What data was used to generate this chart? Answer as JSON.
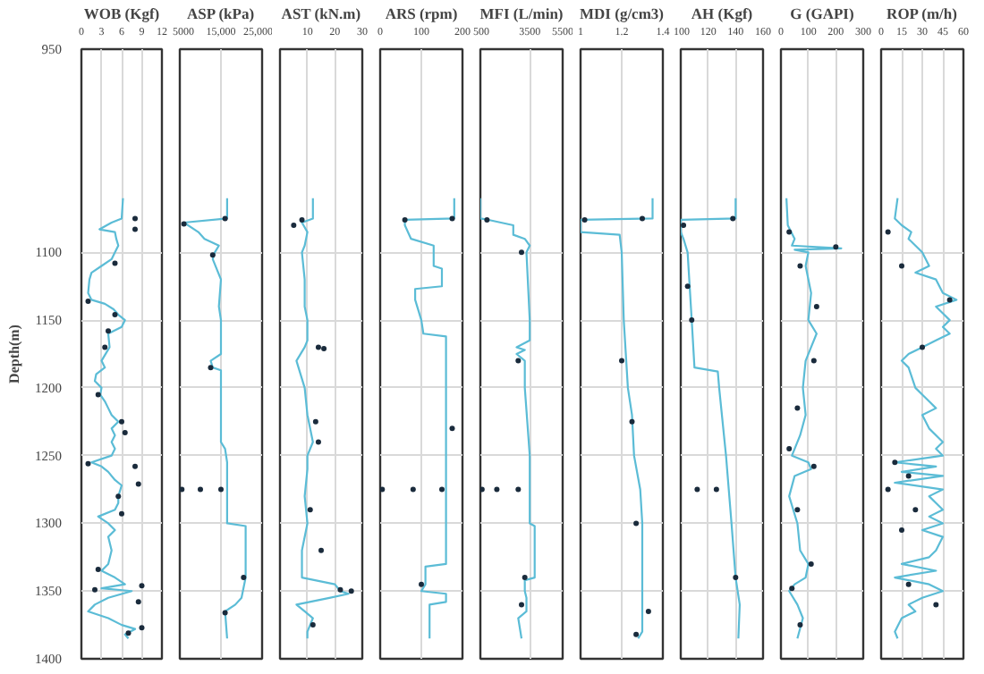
{
  "chart_data": [
    {
      "type": "line",
      "title": "WOB (Kgf)",
      "ylabel": "Depth(m)",
      "xlim": [
        0,
        12
      ],
      "xticks": [
        0,
        3,
        6,
        9,
        12
      ],
      "ylim": [
        1400,
        950
      ],
      "yticks": [
        950,
        1100,
        1150,
        1200,
        1250,
        1300,
        1350,
        1400
      ],
      "grid": true,
      "series": [
        {
          "color": "#5bbcd6",
          "x": [
            6.2,
            6,
            4.5,
            2.7,
            5,
            5.2,
            5.5,
            5,
            4.5,
            3,
            1.5,
            1.2,
            1,
            1.5,
            3.5,
            4.8,
            5.5,
            6.5,
            6,
            4,
            4.2,
            3,
            3.5,
            2.2,
            2,
            3,
            2.8,
            3.5,
            4,
            4.5,
            5.5,
            4.5,
            5,
            4.5,
            5,
            4.5,
            1.5,
            3,
            4,
            5,
            6,
            5.5,
            5.5,
            5,
            2.5,
            4,
            5,
            4,
            4.5,
            4,
            3,
            5,
            6.5,
            3,
            7.5,
            4,
            2,
            1,
            4,
            6,
            8,
            6.5,
            7
          ],
          "values": [
            1060,
            1075,
            1078,
            1083,
            1085,
            1090,
            1095,
            1100,
            1105,
            1110,
            1115,
            1120,
            1130,
            1135,
            1138,
            1142,
            1146,
            1150,
            1155,
            1160,
            1170,
            1180,
            1185,
            1190,
            1195,
            1200,
            1205,
            1210,
            1215,
            1220,
            1225,
            1230,
            1235,
            1240,
            1245,
            1250,
            1255,
            1258,
            1262,
            1268,
            1272,
            1280,
            1285,
            1290,
            1295,
            1300,
            1305,
            1310,
            1320,
            1330,
            1335,
            1340,
            1345,
            1348,
            1350,
            1355,
            1360,
            1365,
            1370,
            1375,
            1378,
            1382,
            1385
          ]
        },
        {
          "type": "scatter",
          "color": "#1a2b3c",
          "x": [
            8,
            8,
            5,
            1,
            5,
            4,
            3.5,
            2.5,
            6,
            6.5,
            1,
            8,
            8.5,
            5.5,
            6,
            2.5,
            9,
            2,
            8.5,
            9,
            7
          ],
          "values": [
            1075,
            1083,
            1108,
            1136,
            1146,
            1158,
            1170,
            1205,
            1225,
            1233,
            1256,
            1258,
            1271,
            1280,
            1293,
            1334,
            1346,
            1349,
            1358,
            1377,
            1381
          ]
        }
      ]
    },
    {
      "type": "line",
      "title": "ASP (kPa)",
      "xlim": [
        5000,
        25000
      ],
      "xticks": [
        5000,
        {
          "value": 15000,
          "label": "15,000"
        },
        {
          "value": 25000,
          "label": "25,000"
        }
      ],
      "ylim": [
        1400,
        950
      ],
      "yticks": [
        950,
        1100,
        1150,
        1200,
        1250,
        1300,
        1350,
        1400
      ],
      "grid": true,
      "tick_labels": "x",
      "series": [
        {
          "color": "#5bbcd6",
          "x": [
            16500,
            16500,
            6000,
            9500,
            11000,
            14500,
            13500,
            13000,
            15000,
            14500,
            15000,
            15000,
            12500,
            13000,
            15000,
            15000,
            15000,
            16000,
            16500,
            16500,
            21000,
            21000,
            20000,
            18500,
            16000,
            16500
          ],
          "values": [
            1060,
            1075,
            1078,
            1085,
            1090,
            1095,
            1100,
            1105,
            1120,
            1140,
            1150,
            1175,
            1180,
            1185,
            1187,
            1200,
            1240,
            1245,
            1255,
            1300,
            1302,
            1340,
            1355,
            1360,
            1365,
            1385
          ]
        },
        {
          "type": "scatter",
          "color": "#1a2b3c",
          "x": [
            16000,
            6000,
            13000,
            12500,
            5500,
            10000,
            15000,
            20500,
            16000
          ],
          "values": [
            1075,
            1079,
            1102,
            1185,
            1275,
            1275,
            1275,
            1340,
            1366
          ]
        }
      ]
    },
    {
      "type": "line",
      "title": "AST (kN.m)",
      "xlim": [
        0,
        30
      ],
      "xticks": [
        {
          "value": 0,
          "label": null
        },
        10,
        20,
        30
      ],
      "ylim": [
        1400,
        950
      ],
      "yticks": [
        950,
        1100,
        1150,
        1200,
        1250,
        1300,
        1350,
        1400
      ],
      "grid": true,
      "tick_labels": "x",
      "series": [
        {
          "color": "#5bbcd6",
          "x": [
            12,
            12,
            8,
            10,
            9,
            8,
            9,
            9,
            10,
            10,
            9,
            6,
            9,
            10,
            12,
            10,
            10,
            9,
            10,
            8,
            8,
            20,
            22,
            25,
            18,
            6,
            9,
            12,
            10,
            10
          ],
          "values": [
            1060,
            1075,
            1078,
            1085,
            1095,
            1100,
            1120,
            1140,
            1150,
            1165,
            1170,
            1180,
            1200,
            1220,
            1240,
            1250,
            1260,
            1280,
            1300,
            1320,
            1340,
            1345,
            1350,
            1352,
            1355,
            1360,
            1365,
            1370,
            1380,
            1385
          ]
        },
        {
          "type": "scatter",
          "color": "#1a2b3c",
          "x": [
            8,
            5,
            14,
            16,
            13,
            14,
            11,
            15,
            22,
            26,
            12
          ],
          "values": [
            1076,
            1080,
            1170,
            1171,
            1225,
            1240,
            1290,
            1320,
            1349,
            1350,
            1375
          ]
        }
      ]
    },
    {
      "type": "line",
      "title": "ARS (rpm)",
      "xlim": [
        0,
        200
      ],
      "xticks": [
        0,
        100,
        200
      ],
      "ylim": [
        1400,
        950
      ],
      "yticks": [
        950,
        1100,
        1150,
        1200,
        1250,
        1300,
        1350,
        1400
      ],
      "grid": true,
      "tick_labels": "x",
      "series": [
        {
          "color": "#5bbcd6",
          "x": [
            180,
            180,
            60,
            60,
            75,
            130,
            130,
            150,
            150,
            85,
            85,
            100,
            105,
            160,
            160,
            160,
            160,
            110,
            110,
            100,
            160,
            160,
            120,
            120
          ],
          "values": [
            1060,
            1075,
            1076,
            1080,
            1090,
            1095,
            1110,
            1112,
            1125,
            1127,
            1135,
            1150,
            1160,
            1162,
            1270,
            1290,
            1330,
            1332,
            1345,
            1350,
            1352,
            1358,
            1360,
            1385
          ]
        },
        {
          "type": "scatter",
          "color": "#1a2b3c",
          "x": [
            175,
            60,
            175,
            5,
            80,
            150,
            100
          ],
          "values": [
            1075,
            1076,
            1230,
            1275,
            1275,
            1275,
            1345
          ]
        }
      ]
    },
    {
      "type": "line",
      "title": "MFI (L/min)",
      "xlim": [
        500,
        5500
      ],
      "xticks": [
        500,
        3500,
        5500
      ],
      "ylim": [
        1400,
        950
      ],
      "yticks": [
        950,
        1100,
        1150,
        1200,
        1250,
        1300,
        1350,
        1400
      ],
      "grid": true,
      "tick_labels": "x",
      "series": [
        {
          "color": "#5bbcd6",
          "x": [
            500,
            500,
            1000,
            2500,
            2500,
            3200,
            3500,
            3300,
            3500,
            3500,
            2700,
            3200,
            2700,
            3200,
            3200,
            3200,
            3500,
            3500,
            3500,
            3800,
            3800,
            3200,
            3200,
            3300,
            3300,
            2800,
            3000
          ],
          "values": [
            1060,
            1075,
            1076,
            1080,
            1087,
            1090,
            1095,
            1100,
            1150,
            1165,
            1170,
            1172,
            1175,
            1180,
            1190,
            1200,
            1250,
            1275,
            1300,
            1302,
            1340,
            1342,
            1350,
            1355,
            1365,
            1370,
            1385
          ]
        },
        {
          "type": "scatter",
          "color": "#1a2b3c",
          "x": [
            900,
            3000,
            2800,
            600,
            1500,
            2800,
            3200,
            3000
          ],
          "values": [
            1076,
            1100,
            1180,
            1275,
            1275,
            1275,
            1340,
            1360
          ]
        }
      ]
    },
    {
      "type": "line",
      "title": "MDI (g/cm3)",
      "xlim": [
        1,
        1.4
      ],
      "xticks": [
        1,
        1.2,
        1.4
      ],
      "ylim": [
        1400,
        950
      ],
      "yticks": [
        950,
        1100,
        1150,
        1200,
        1250,
        1300,
        1350,
        1400
      ],
      "grid": true,
      "tick_labels": "x",
      "series": [
        {
          "color": "#5bbcd6",
          "x": [
            1.35,
            1.35,
            1.0,
            1.0,
            1.19,
            1.2,
            1.21,
            1.23,
            1.25,
            1.26,
            1.29,
            1.3,
            1.3,
            1.3,
            1.28
          ],
          "values": [
            1060,
            1075,
            1076,
            1085,
            1087,
            1100,
            1150,
            1200,
            1220,
            1250,
            1275,
            1300,
            1340,
            1380,
            1385
          ]
        },
        {
          "type": "scatter",
          "color": "#1a2b3c",
          "x": [
            1.3,
            1.02,
            1.2,
            1.25,
            1.27,
            1.33,
            1.27
          ],
          "values": [
            1075,
            1076,
            1180,
            1225,
            1300,
            1365,
            1382
          ]
        }
      ]
    },
    {
      "type": "line",
      "title": "AH (Kgf)",
      "xlim": [
        100,
        160
      ],
      "xticks": [
        100,
        120,
        140,
        160
      ],
      "ylim": [
        1400,
        950
      ],
      "yticks": [
        950,
        1100,
        1150,
        1200,
        1250,
        1300,
        1350,
        1400
      ],
      "grid": true,
      "tick_labels": "x",
      "series": [
        {
          "color": "#5bbcd6",
          "x": [
            140,
            140,
            100,
            100,
            102,
            105,
            108,
            110,
            127,
            128,
            133,
            137,
            140,
            143,
            142
          ],
          "values": [
            1060,
            1075,
            1076,
            1085,
            1090,
            1100,
            1150,
            1185,
            1188,
            1200,
            1250,
            1300,
            1340,
            1360,
            1385
          ]
        },
        {
          "type": "scatter",
          "color": "#1a2b3c",
          "x": [
            138,
            102,
            105,
            108,
            112,
            126,
            140
          ],
          "values": [
            1075,
            1080,
            1125,
            1150,
            1275,
            1275,
            1340
          ]
        }
      ]
    },
    {
      "type": "line",
      "title": "G (GAPI)",
      "xlim": [
        0,
        300
      ],
      "xticks": [
        0,
        100,
        200,
        300
      ],
      "ylim": [
        1400,
        950
      ],
      "yticks": [
        950,
        1100,
        1150,
        1200,
        1250,
        1300,
        1350,
        1400
      ],
      "grid": true,
      "tick_labels": "x",
      "series": [
        {
          "color": "#5bbcd6",
          "x": [
            20,
            25,
            50,
            40,
            220,
            50,
            100,
            90,
            110,
            100,
            130,
            110,
            90,
            80,
            90,
            70,
            50,
            40,
            100,
            110,
            50,
            30,
            60,
            70,
            100,
            90,
            50,
            30,
            60,
            80,
            60
          ],
          "values": [
            1060,
            1080,
            1090,
            1095,
            1097,
            1098,
            1100,
            1110,
            1130,
            1150,
            1160,
            1170,
            1180,
            1200,
            1220,
            1235,
            1245,
            1250,
            1255,
            1260,
            1265,
            1280,
            1300,
            1320,
            1330,
            1340,
            1345,
            1350,
            1360,
            1370,
            1385
          ]
        },
        {
          "type": "scatter",
          "color": "#1a2b3c",
          "x": [
            30,
            200,
            70,
            130,
            120,
            60,
            30,
            120,
            60,
            110,
            40,
            70
          ],
          "values": [
            1085,
            1096,
            1110,
            1140,
            1180,
            1215,
            1245,
            1258,
            1290,
            1330,
            1348,
            1375
          ]
        }
      ]
    },
    {
      "type": "line",
      "title": "ROP (m/h)",
      "xlim": [
        0,
        60
      ],
      "xticks": [
        0,
        15,
        30,
        45,
        60
      ],
      "ylim": [
        1400,
        950
      ],
      "yticks": [
        950,
        1100,
        1150,
        1200,
        1250,
        1300,
        1350,
        1400
      ],
      "grid": true,
      "tick_labels": "x",
      "series": [
        {
          "color": "#5bbcd6",
          "x": [
            12,
            10,
            15,
            22,
            20,
            25,
            30,
            35,
            25,
            40,
            45,
            55,
            40,
            45,
            50,
            45,
            50,
            40,
            30,
            20,
            15,
            20,
            25,
            30,
            35,
            40,
            30,
            35,
            45,
            40,
            45,
            10,
            40,
            15,
            45,
            10,
            45,
            35,
            40,
            45,
            35,
            45,
            30,
            45,
            40,
            35,
            15,
            40,
            10,
            35,
            45,
            30,
            20,
            25,
            15,
            10,
            12
          ],
          "values": [
            1060,
            1075,
            1080,
            1085,
            1090,
            1095,
            1100,
            1110,
            1115,
            1120,
            1130,
            1135,
            1140,
            1145,
            1150,
            1155,
            1160,
            1165,
            1170,
            1175,
            1180,
            1185,
            1200,
            1205,
            1210,
            1215,
            1220,
            1230,
            1240,
            1245,
            1250,
            1255,
            1258,
            1262,
            1265,
            1270,
            1275,
            1280,
            1285,
            1290,
            1295,
            1300,
            1305,
            1310,
            1320,
            1325,
            1330,
            1335,
            1340,
            1345,
            1350,
            1355,
            1360,
            1365,
            1370,
            1380,
            1385
          ]
        },
        {
          "type": "scatter",
          "color": "#1a2b3c",
          "x": [
            5,
            15,
            50,
            30,
            10,
            20,
            5,
            25,
            15,
            20,
            40
          ],
          "values": [
            1085,
            1110,
            1135,
            1170,
            1255,
            1265,
            1275,
            1290,
            1305,
            1345,
            1360
          ]
        }
      ]
    }
  ]
}
